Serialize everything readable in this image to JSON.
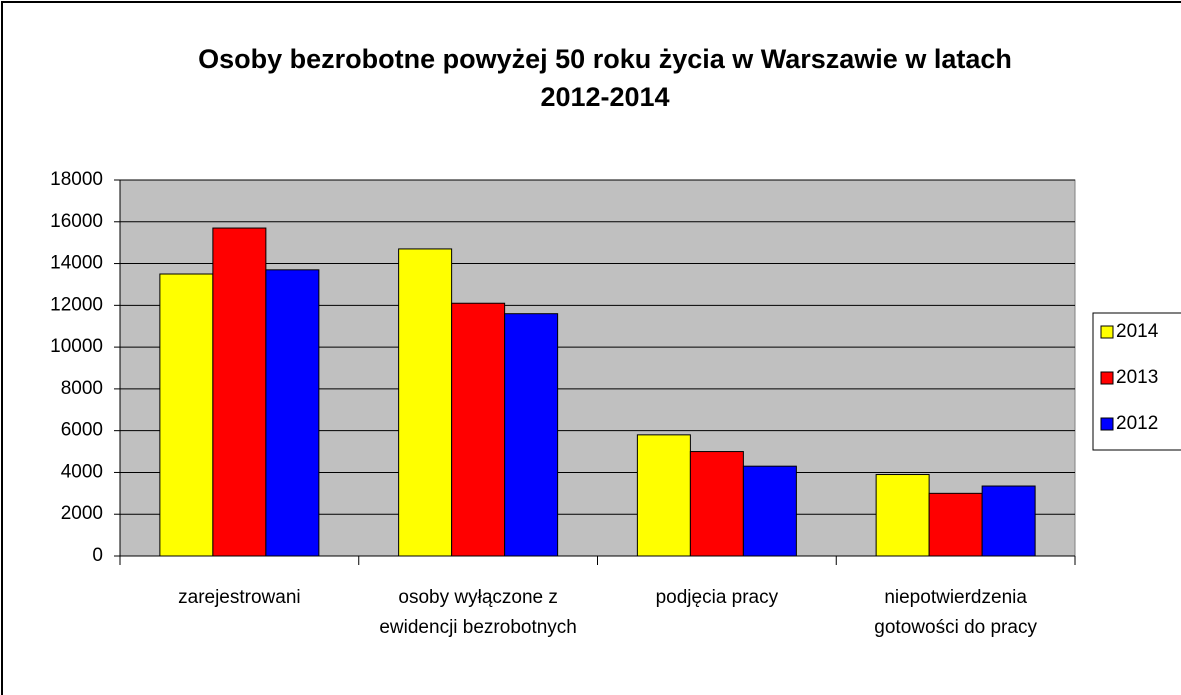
{
  "chart_data": {
    "type": "bar",
    "title": "Osoby bezrobotne powyżej 50 roku życia w Warszawie w latach 2012-2014",
    "categories": [
      "zarejestrowani",
      "osoby wyłączone z ewidencji bezrobotnych",
      "podjęcia pracy",
      "niepotwierdzenia gotowości do pracy"
    ],
    "series": [
      {
        "name": "2014",
        "color": "#ffff00",
        "values": [
          13500,
          14700,
          5800,
          3900
        ]
      },
      {
        "name": "2013",
        "color": "#ff0000",
        "values": [
          15700,
          12100,
          5000,
          3000
        ]
      },
      {
        "name": "2012",
        "color": "#0000ff",
        "values": [
          13700,
          11600,
          4300,
          3350
        ]
      }
    ],
    "ylim": [
      0,
      18000
    ],
    "yticks": [
      0,
      2000,
      4000,
      6000,
      8000,
      10000,
      12000,
      14000,
      16000,
      18000
    ],
    "grid": true,
    "legend": "right"
  }
}
